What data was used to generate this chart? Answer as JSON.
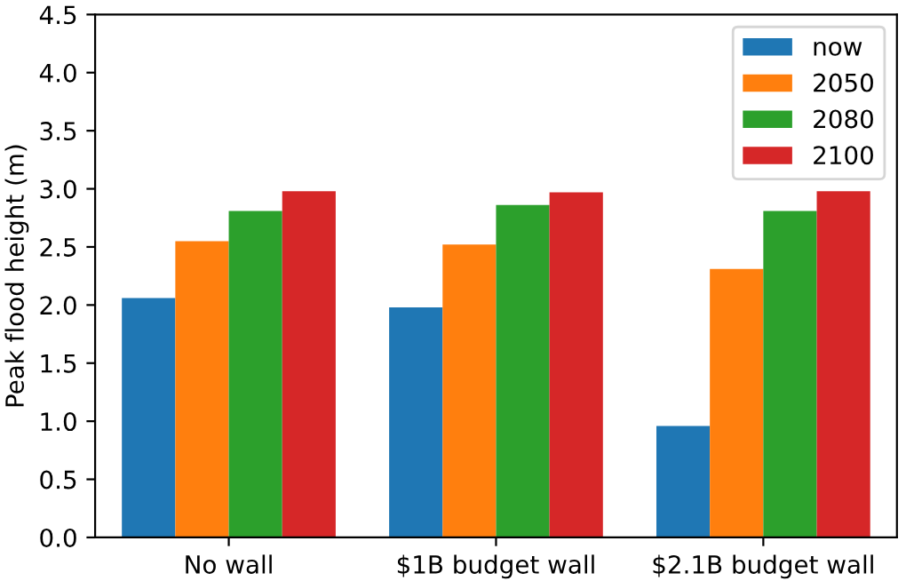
{
  "chart_data": {
    "type": "bar",
    "ylabel": "Peak flood height (m)",
    "categories": [
      "No wall",
      "$1B budget wall",
      "$2.1B budget wall"
    ],
    "series": [
      {
        "name": "now",
        "color": "#1f77b4",
        "values": [
          2.06,
          1.98,
          0.96
        ]
      },
      {
        "name": "2050",
        "color": "#ff7f0e",
        "values": [
          2.55,
          2.52,
          2.31
        ]
      },
      {
        "name": "2080",
        "color": "#2ca02c",
        "values": [
          2.81,
          2.86,
          2.81
        ]
      },
      {
        "name": "2100",
        "color": "#d62728",
        "values": [
          2.98,
          2.97,
          2.98
        ]
      }
    ],
    "ylim": [
      0,
      4.5
    ],
    "yticks": [
      {
        "value": 0,
        "label": "0.0"
      },
      0.5,
      {
        "value": 1,
        "label": "1.0"
      },
      1.5,
      {
        "value": 2,
        "label": "2.0"
      },
      2.5,
      {
        "value": 3,
        "label": "3.0"
      },
      3.5,
      {
        "value": 4,
        "label": "4.0"
      },
      4.5
    ],
    "legend": "top right",
    "grid": false
  }
}
